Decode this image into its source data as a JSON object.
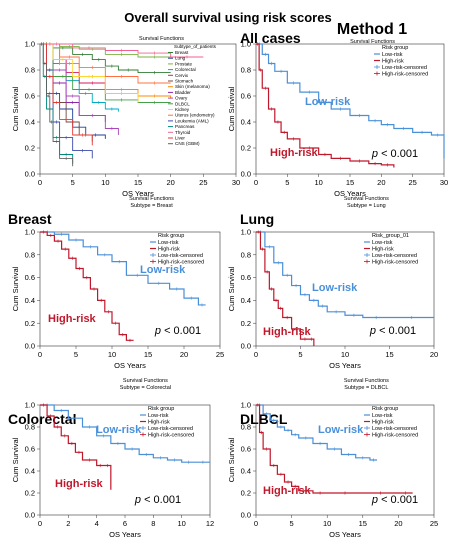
{
  "figure": {
    "title": "Overall survival using risk scores",
    "method": "Method 1"
  },
  "colors": {
    "low": "#4a90d9",
    "high": "#c0182b",
    "neutral": "#333333"
  },
  "chart_data": [
    {
      "id": "all-subtypes",
      "type": "line",
      "step": true,
      "title": "Survival Functions",
      "xlabel": "OS Years",
      "ylabel": "Cum Survival",
      "xlim": [
        0,
        30
      ],
      "ylim": [
        0,
        1
      ],
      "xticks": [
        0,
        5,
        10,
        15,
        20,
        25,
        30
      ],
      "yticks": [
        0.0,
        0.2,
        0.4,
        0.6,
        0.8,
        1.0
      ],
      "legend_title": "Subtype_of_patients",
      "legend_position": "right",
      "series": [
        {
          "name": "Breast",
          "color": "#2e7d32",
          "x": [
            0,
            2,
            5,
            8,
            10,
            12,
            15,
            20
          ],
          "y": [
            1.0,
            0.97,
            0.92,
            0.88,
            0.83,
            0.8,
            0.78,
            0.78
          ]
        },
        {
          "name": "Lung",
          "color": "#1e3f9e",
          "x": [
            0,
            1,
            2,
            3,
            5,
            7,
            10
          ],
          "y": [
            1.0,
            0.8,
            0.62,
            0.5,
            0.36,
            0.3,
            0.27
          ]
        },
        {
          "name": "Prostate",
          "color": "#7cb342",
          "x": [
            0,
            3,
            6,
            10,
            15,
            20
          ],
          "y": [
            1.0,
            0.98,
            0.96,
            0.92,
            0.9,
            0.9
          ]
        },
        {
          "name": "Colorectal",
          "color": "#00acc1",
          "x": [
            0,
            2,
            4,
            6,
            8,
            10,
            12
          ],
          "y": [
            1.0,
            0.85,
            0.72,
            0.62,
            0.55,
            0.5,
            0.48
          ]
        },
        {
          "name": "Cervix",
          "color": "#d81b60",
          "x": [
            0,
            2,
            4,
            6,
            10,
            15
          ],
          "y": [
            1.0,
            0.88,
            0.78,
            0.7,
            0.62,
            0.6
          ]
        },
        {
          "name": "Stomach",
          "color": "#6d4c41",
          "x": [
            0,
            1,
            2,
            4,
            6,
            8
          ],
          "y": [
            1.0,
            0.75,
            0.55,
            0.4,
            0.3,
            0.25
          ]
        },
        {
          "name": "Skin (melanoma)",
          "color": "#fb8c00",
          "x": [
            0,
            3,
            6,
            10,
            15,
            20
          ],
          "y": [
            1.0,
            0.85,
            0.75,
            0.65,
            0.6,
            0.58
          ]
        },
        {
          "name": "Bladder",
          "color": "#8e24aa",
          "x": [
            0,
            2,
            4,
            6,
            10
          ],
          "y": [
            1.0,
            0.7,
            0.55,
            0.45,
            0.4
          ]
        },
        {
          "name": "Ovary",
          "color": "#ab47bc",
          "x": [
            0,
            2,
            4,
            6,
            10,
            12
          ],
          "y": [
            1.0,
            0.8,
            0.6,
            0.45,
            0.35,
            0.3
          ]
        },
        {
          "name": "DLBCL",
          "color": "#43a047",
          "x": [
            0,
            2,
            5,
            10,
            15,
            20
          ],
          "y": [
            1.0,
            0.75,
            0.65,
            0.57,
            0.55,
            0.55
          ]
        },
        {
          "name": "Kidney",
          "color": "#fdd835",
          "x": [
            0,
            2,
            5,
            10,
            15
          ],
          "y": [
            1.0,
            0.88,
            0.75,
            0.62,
            0.55
          ]
        },
        {
          "name": "Uterus (endometry)",
          "color": "#ff7043",
          "x": [
            0,
            3,
            6,
            10,
            15,
            20
          ],
          "y": [
            1.0,
            0.9,
            0.82,
            0.75,
            0.7,
            0.7
          ]
        },
        {
          "name": "Leukemia (AML)",
          "color": "#3949ab",
          "x": [
            0,
            1,
            2,
            3,
            5,
            8
          ],
          "y": [
            1.0,
            0.62,
            0.4,
            0.28,
            0.18,
            0.12
          ]
        },
        {
          "name": "Pancreas",
          "color": "#00897b",
          "x": [
            0,
            0.5,
            1,
            2,
            3,
            5
          ],
          "y": [
            1.0,
            0.75,
            0.5,
            0.28,
            0.15,
            0.08
          ]
        },
        {
          "name": "Thyroid",
          "color": "#f06292",
          "x": [
            0,
            5,
            10,
            15,
            20,
            25
          ],
          "y": [
            1.0,
            0.97,
            0.95,
            0.93,
            0.9,
            0.9
          ]
        },
        {
          "name": "Liver",
          "color": "#e53935",
          "x": [
            0,
            1,
            2,
            3,
            5,
            8
          ],
          "y": [
            1.0,
            0.75,
            0.55,
            0.42,
            0.3,
            0.22
          ]
        },
        {
          "name": "CNS (GBM)",
          "color": "#616161",
          "x": [
            0,
            0.5,
            1,
            1.5,
            2,
            3,
            5
          ],
          "y": [
            1.0,
            0.85,
            0.6,
            0.4,
            0.25,
            0.12,
            0.06
          ]
        }
      ]
    },
    {
      "id": "all-cases",
      "type": "line",
      "step": true,
      "heading": "All cases",
      "title": "Survival Functions",
      "xlabel": "OS Years",
      "ylabel": "Cum Survival",
      "xlim": [
        0,
        30
      ],
      "ylim": [
        0,
        1
      ],
      "xticks": [
        0,
        5,
        10,
        15,
        20,
        25,
        30
      ],
      "yticks": [
        0.0,
        0.2,
        0.4,
        0.6,
        0.8,
        1.0
      ],
      "legend_title": "Risk group",
      "legend_position": "top-right",
      "legend": [
        "Low-risk",
        "High-risk",
        "Low-risk-censored",
        "High-risk-censored"
      ],
      "pvalue": "0.001",
      "series": [
        {
          "name": "Low-risk",
          "x": [
            0,
            1,
            2,
            3,
            5,
            7,
            10,
            12,
            15,
            18,
            20,
            22,
            25,
            28,
            30
          ],
          "y": [
            1.0,
            0.92,
            0.85,
            0.79,
            0.7,
            0.63,
            0.55,
            0.5,
            0.45,
            0.41,
            0.38,
            0.35,
            0.32,
            0.3,
            0.12
          ]
        },
        {
          "name": "High-risk",
          "x": [
            0,
            0.5,
            1,
            2,
            3,
            4,
            5,
            7,
            10,
            12,
            15,
            18,
            20,
            22
          ],
          "y": [
            1.0,
            0.8,
            0.66,
            0.5,
            0.4,
            0.32,
            0.27,
            0.2,
            0.15,
            0.12,
            0.1,
            0.08,
            0.07,
            0.05
          ]
        }
      ]
    },
    {
      "id": "breast",
      "type": "line",
      "step": true,
      "heading": "Breast",
      "title": "Survival Functions",
      "subtitle": "Subtype = Breast",
      "xlabel": "OS Years",
      "ylabel": "Cum Survival",
      "xlim": [
        0,
        25
      ],
      "ylim": [
        0,
        1
      ],
      "xticks": [
        0,
        5,
        10,
        15,
        20,
        25
      ],
      "yticks": [
        0.0,
        0.2,
        0.4,
        0.6,
        0.8,
        1.0
      ],
      "legend_title": "Risk group",
      "legend_position": "top-right",
      "legend": [
        "Low-risk",
        "High-risk",
        "Low-risk-censored",
        "High-risk-censored"
      ],
      "pvalue": "0.001",
      "series": [
        {
          "name": "Low-risk",
          "x": [
            0,
            2,
            4,
            6,
            8,
            10,
            12,
            15,
            18,
            20,
            22,
            23
          ],
          "y": [
            1.0,
            0.98,
            0.93,
            0.87,
            0.8,
            0.74,
            0.62,
            0.55,
            0.5,
            0.42,
            0.36,
            0.36
          ]
        },
        {
          "name": "High-risk",
          "x": [
            0,
            1,
            2,
            3,
            4,
            5,
            6,
            7,
            8,
            9,
            10,
            11,
            12,
            13
          ],
          "y": [
            1.0,
            0.97,
            0.92,
            0.85,
            0.77,
            0.68,
            0.6,
            0.5,
            0.4,
            0.3,
            0.2,
            0.1,
            0.05,
            0.05
          ]
        }
      ]
    },
    {
      "id": "lung",
      "type": "line",
      "step": true,
      "heading": "Lung",
      "title": "Survival Functions",
      "subtitle": "Subtype = Lung",
      "xlabel": "OS Years",
      "ylabel": "Cum Survival",
      "xlim": [
        0,
        20
      ],
      "ylim": [
        0,
        1
      ],
      "xticks": [
        0,
        5,
        10,
        15,
        20
      ],
      "yticks": [
        0.0,
        0.2,
        0.4,
        0.6,
        0.8,
        1.0
      ],
      "legend_title": "Risk_group_01",
      "legend_position": "top-right",
      "legend": [
        "Low-risk",
        "High-risk",
        "Low-risk-censored",
        "High-risk-censored"
      ],
      "pvalue": "0.001",
      "series": [
        {
          "name": "Low-risk",
          "x": [
            0,
            1,
            2,
            3,
            4,
            5,
            6,
            7,
            8,
            10,
            12,
            15,
            20
          ],
          "y": [
            1.0,
            0.87,
            0.73,
            0.62,
            0.53,
            0.45,
            0.4,
            0.35,
            0.3,
            0.27,
            0.25,
            0.25,
            0.25
          ]
        },
        {
          "name": "High-risk",
          "x": [
            0,
            0.5,
            1,
            1.5,
            2,
            2.5,
            3,
            4,
            5,
            6,
            6.5
          ],
          "y": [
            1.0,
            0.85,
            0.65,
            0.5,
            0.4,
            0.33,
            0.25,
            0.15,
            0.06,
            0.06,
            0.0
          ]
        }
      ]
    },
    {
      "id": "colorectal",
      "type": "line",
      "step": true,
      "heading": "Colorectal",
      "title": "Survival Functions",
      "subtitle": "Subtype = Colorectal",
      "xlabel": "OS Years",
      "ylabel": "Cum Survival",
      "xlim": [
        0,
        12
      ],
      "ylim": [
        0,
        1
      ],
      "xticks": [
        0,
        2,
        4,
        6,
        8,
        10,
        12
      ],
      "yticks": [
        0.0,
        0.2,
        0.4,
        0.6,
        0.8,
        1.0
      ],
      "legend_title": "Risk group",
      "legend_position": "top-right",
      "legend": [
        "Low-risk",
        "High-risk",
        "Low-risk-censored",
        "High-risk-censored"
      ],
      "pvalue": "0.001",
      "series": [
        {
          "name": "Low-risk",
          "x": [
            0,
            1,
            2,
            3,
            4,
            5,
            6,
            7,
            8,
            9,
            10,
            11,
            12
          ],
          "y": [
            1.0,
            0.95,
            0.88,
            0.8,
            0.72,
            0.65,
            0.6,
            0.55,
            0.52,
            0.5,
            0.48,
            0.48,
            0.48
          ]
        },
        {
          "name": "High-risk",
          "x": [
            0,
            0.5,
            1,
            1.5,
            2,
            2.5,
            3,
            4,
            4.5,
            5
          ],
          "y": [
            1.0,
            0.9,
            0.8,
            0.72,
            0.65,
            0.57,
            0.5,
            0.45,
            0.45,
            0.23
          ]
        }
      ]
    },
    {
      "id": "dlbcl",
      "type": "line",
      "step": true,
      "heading": "DLBCL",
      "title": "Survival Functions",
      "subtitle": "Subtype = DLBCL",
      "xlabel": "OS Years",
      "ylabel": "Cum Survival",
      "xlim": [
        0,
        25
      ],
      "ylim": [
        0,
        1
      ],
      "xticks": [
        0,
        5,
        10,
        15,
        20,
        25
      ],
      "yticks": [
        0.0,
        0.2,
        0.4,
        0.6,
        0.8,
        1.0
      ],
      "legend_title": "Risk group",
      "legend_position": "top-right",
      "legend": [
        "Low-risk",
        "High-risk",
        "Low-risk-censored",
        "High-risk-censored"
      ],
      "pvalue": "0.001",
      "series": [
        {
          "name": "Low-risk",
          "x": [
            0,
            1,
            2,
            3,
            4,
            5,
            6,
            8,
            10,
            12,
            14,
            16,
            17
          ],
          "y": [
            1.0,
            0.92,
            0.86,
            0.8,
            0.77,
            0.73,
            0.7,
            0.65,
            0.6,
            0.55,
            0.52,
            0.5,
            0.5
          ]
        },
        {
          "name": "High-risk",
          "x": [
            0,
            0.5,
            1,
            2,
            3,
            4,
            5,
            6,
            8,
            10,
            15,
            20,
            22
          ],
          "y": [
            1.0,
            0.75,
            0.6,
            0.45,
            0.37,
            0.3,
            0.26,
            0.22,
            0.2,
            0.2,
            0.2,
            0.2,
            0.2
          ]
        }
      ]
    }
  ]
}
